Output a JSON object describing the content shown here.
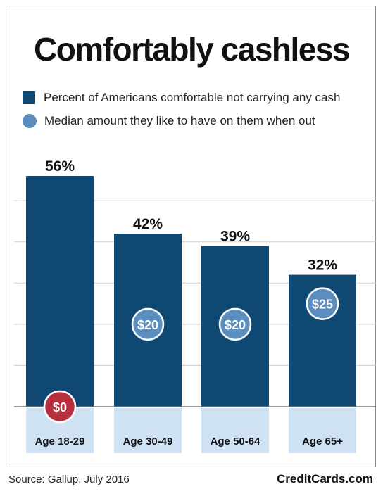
{
  "chart_data": {
    "type": "bar",
    "title": "Comfortably cashless",
    "categories": [
      "Age 18-29",
      "Age 30-49",
      "Age 50-64",
      "Age 65+"
    ],
    "series": [
      {
        "name": "Percent of Americans comfortable not carrying any cash",
        "values": [
          56,
          42,
          39,
          32
        ],
        "labels": [
          "56%",
          "42%",
          "39%",
          "32%"
        ],
        "color": "#0e4873"
      },
      {
        "name": "Median amount they like to have on them when out",
        "values": [
          0,
          20,
          20,
          25
        ],
        "labels": [
          "$0",
          "$20",
          "$20",
          "$25"
        ],
        "color": "#5b8ebf",
        "zero_color": "#b8303e"
      }
    ],
    "ylim": [
      0,
      60
    ],
    "grid": true,
    "legend": "top-left"
  },
  "footer": {
    "source": "Source: Gallup, July 2016",
    "brand": "CreditCards.com"
  }
}
